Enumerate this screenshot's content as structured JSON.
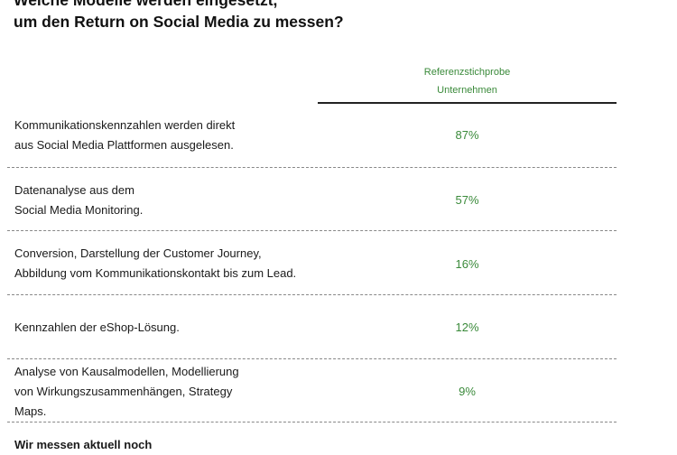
{
  "title": {
    "line1": "Welche Modelle werden eingesetzt,",
    "line2": "um den Return on Social Media zu messen?"
  },
  "column_header": {
    "line1": "Referenzstichprobe",
    "line2": "Unternehmen"
  },
  "rows": [
    {
      "lines": [
        "Kommunikationskennzahlen werden direkt",
        "aus Social Media Plattformen ausgelesen."
      ],
      "value": "87%"
    },
    {
      "lines": [
        "Datenanalyse aus dem",
        "Social Media Monitoring."
      ],
      "value": "57%"
    },
    {
      "lines": [
        "Conversion, Darstellung der Customer Journey,",
        "Abbildung vom Kommunikationskontakt bis zum Lead."
      ],
      "value": "16%"
    },
    {
      "lines": [
        "Kennzahlen der eShop-Lösung."
      ],
      "value": "12%"
    },
    {
      "lines": [
        "Analyse von Kausalmodellen, Modellierung",
        "von Wirkungszusammenhängen, Strategy",
        "Maps."
      ],
      "value": "9%"
    },
    {
      "lines": [
        "Wir messen aktuell noch"
      ]
    }
  ]
}
